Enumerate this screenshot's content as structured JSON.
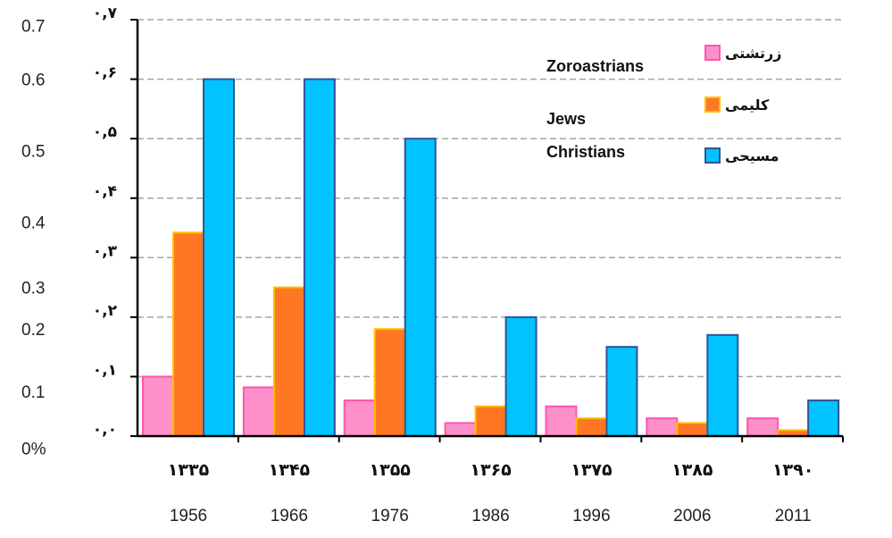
{
  "chart_data": {
    "type": "bar",
    "title": "",
    "xlabel": "",
    "ylabel": "",
    "ylim": [
      0,
      0.7
    ],
    "grid": true,
    "legend_position": "top-right",
    "categories": [
      "1956",
      "1966",
      "1976",
      "1986",
      "1996",
      "2006",
      "2011"
    ],
    "categories_persian": [
      "۱۳۳۵",
      "۱۳۴۵",
      "۱۳۵۵",
      "۱۳۶۵",
      "۱۳۷۵",
      "۱۳۸۵",
      "۱۳۹۰"
    ],
    "y_ticks_persian": [
      "۰,۰",
      "۰,۱",
      "۰,۲",
      "۰,۳",
      "۰,۴",
      "۰,۵",
      "۰,۶",
      "۰,۷"
    ],
    "y_ticks_overlay": [
      {
        "label": "0%",
        "value": -0.02
      },
      {
        "label": "0.1",
        "value": 0.075
      },
      {
        "label": "0.2",
        "value": 0.18
      },
      {
        "label": "0.3",
        "value": 0.25
      },
      {
        "label": "0.4",
        "value": 0.36
      },
      {
        "label": "0.5",
        "value": 0.48
      },
      {
        "label": "0.6",
        "value": 0.6
      },
      {
        "label": "0.7",
        "value": 0.69
      }
    ],
    "series": [
      {
        "name": "زرتشتی",
        "name_en": "Zoroastrians",
        "color": "#ff8fc8",
        "stroke": "#ff55b0",
        "values": [
          0.1,
          0.082,
          0.06,
          0.022,
          0.05,
          0.03,
          0.03
        ]
      },
      {
        "name": "کلیمی",
        "name_en": "Jews",
        "color": "#ff7722",
        "stroke": "#ffc000",
        "values": [
          0.342,
          0.25,
          0.18,
          0.05,
          0.03,
          0.022,
          0.01
        ]
      },
      {
        "name": "مسیحی",
        "name_en": "Christians",
        "color": "#00c3ff",
        "stroke": "#2f5597",
        "values": [
          0.6,
          0.6,
          0.5,
          0.2,
          0.15,
          0.17,
          0.06
        ]
      }
    ]
  }
}
